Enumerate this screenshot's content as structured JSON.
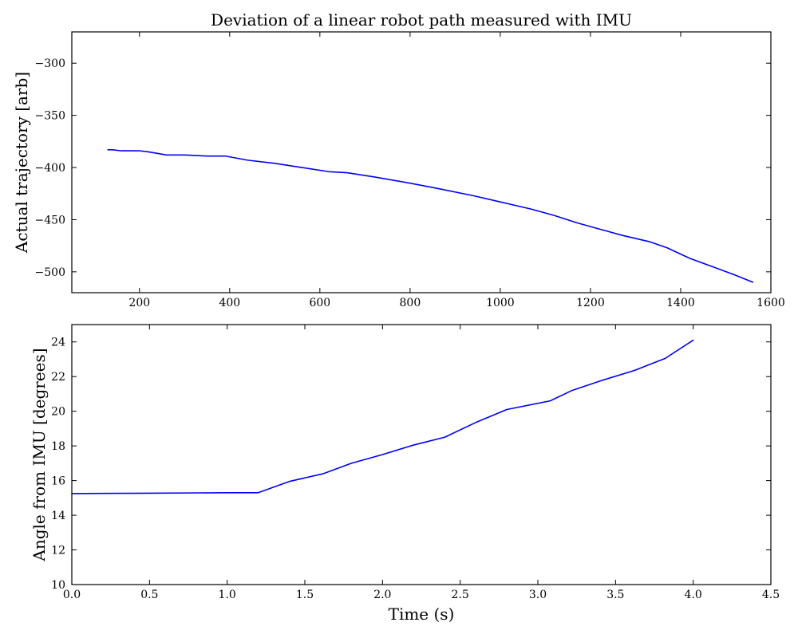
{
  "chart_data": [
    {
      "type": "line",
      "title": "Deviation of a linear robot path measured with IMU",
      "xlabel": "",
      "ylabel": "Actual trajectory [arb]",
      "xlim": [
        50,
        1600
      ],
      "ylim": [
        -520,
        -270
      ],
      "xticks": [
        200,
        400,
        600,
        800,
        1000,
        1200,
        1400,
        1600
      ],
      "yticks": [
        -300,
        -350,
        -400,
        -450,
        -500
      ],
      "xtick_labels": [
        "200",
        "400",
        "600",
        "800",
        "1000",
        "1200",
        "1400",
        "1600"
      ],
      "ytick_labels": [
        "−300",
        "−350",
        "−400",
        "−450",
        "−500"
      ],
      "grid": false,
      "series": [
        {
          "color": "#0000ff",
          "x": [
            130,
            140,
            160,
            200,
            220,
            260,
            300,
            350,
            390,
            440,
            500,
            560,
            620,
            660,
            720,
            800,
            860,
            940,
            1000,
            1070,
            1120,
            1170,
            1220,
            1270,
            1330,
            1370,
            1420,
            1470,
            1520,
            1560
          ],
          "y": [
            -383,
            -383,
            -384,
            -384,
            -385,
            -388,
            -388,
            -389,
            -389,
            -393,
            -396,
            -400,
            -404,
            -405,
            -409,
            -415,
            -420,
            -427,
            -433,
            -440,
            -446,
            -453,
            -459,
            -465,
            -471,
            -477,
            -487,
            -495,
            -503,
            -510
          ]
        }
      ]
    },
    {
      "type": "line",
      "title": "",
      "xlabel": "Time (s)",
      "ylabel": "Angle from IMU [degrees]",
      "xlim": [
        0.0,
        4.5
      ],
      "ylim": [
        10,
        25
      ],
      "xticks": [
        0.0,
        0.5,
        1.0,
        1.5,
        2.0,
        2.5,
        3.0,
        3.5,
        4.0,
        4.5
      ],
      "yticks": [
        10,
        12,
        14,
        16,
        18,
        20,
        22,
        24
      ],
      "xtick_labels": [
        "0.0",
        "0.5",
        "1.0",
        "1.5",
        "2.0",
        "2.5",
        "3.0",
        "3.5",
        "4.0",
        "4.5"
      ],
      "ytick_labels": [
        "10",
        "12",
        "14",
        "16",
        "18",
        "20",
        "22",
        "24"
      ],
      "grid": false,
      "series": [
        {
          "color": "#0000ff",
          "x": [
            0.0,
            0.5,
            1.0,
            1.2,
            1.4,
            1.62,
            1.8,
            2.0,
            2.2,
            2.4,
            2.6,
            2.8,
            3.08,
            3.22,
            3.42,
            3.62,
            3.82,
            4.0
          ],
          "y": [
            15.25,
            15.27,
            15.3,
            15.3,
            15.95,
            16.4,
            17.0,
            17.5,
            18.05,
            18.5,
            19.35,
            20.1,
            20.6,
            21.2,
            21.8,
            22.35,
            23.05,
            24.1
          ]
        }
      ]
    }
  ]
}
